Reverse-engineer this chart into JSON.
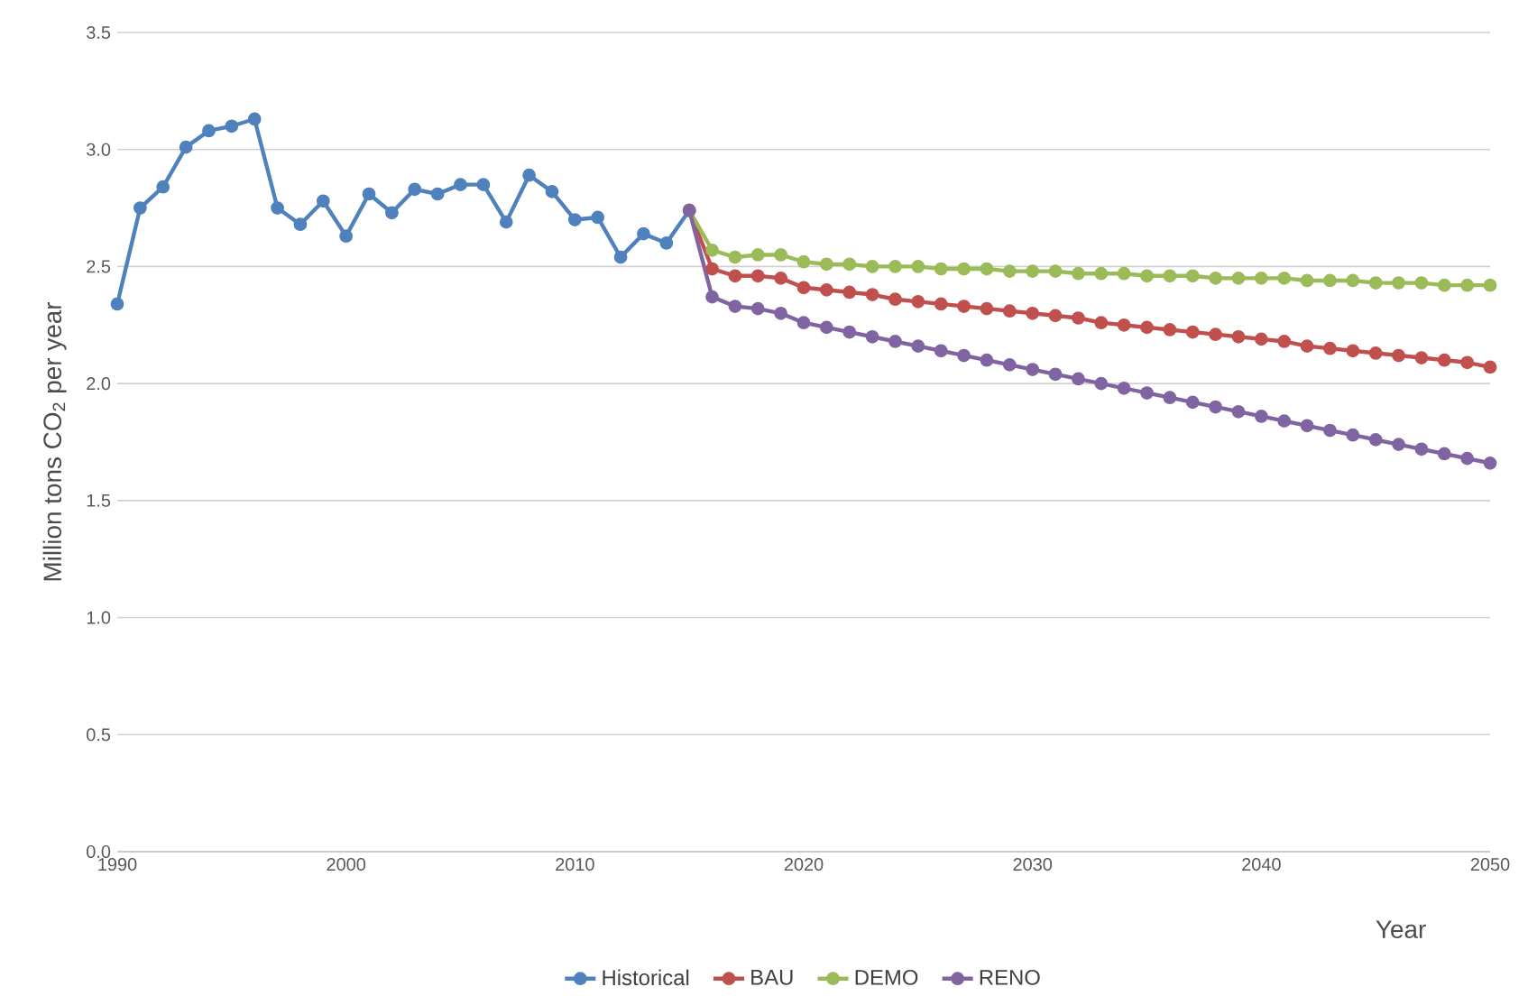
{
  "chart_data": {
    "type": "line",
    "xlabel": "Year",
    "ylabel": "Million tons CO$_{2}$ per year",
    "xlim": [
      1990,
      2050
    ],
    "xticks": [
      1990,
      2000,
      2010,
      2020,
      2030,
      2040,
      2050
    ],
    "ylim": [
      0,
      3.5
    ],
    "yticks": [
      {
        "value": 0,
        "label": "0.0"
      },
      {
        "value": 0.5,
        "label": "0.5"
      },
      {
        "value": 1,
        "label": "1.0"
      },
      {
        "value": 1.5,
        "label": "1.5"
      },
      {
        "value": 2,
        "label": "2.0"
      },
      {
        "value": 2.5,
        "label": "2.5"
      },
      {
        "value": 3,
        "label": "3.0"
      },
      {
        "value": 3.5,
        "label": "3.5"
      }
    ],
    "grid": "y",
    "legend": "bottom",
    "marker": "circle",
    "line_style": "solid",
    "series": [
      {
        "name": "Historical",
        "color": "#4f81bd",
        "x": [
          1990,
          1991,
          1992,
          1993,
          1994,
          1995,
          1996,
          1997,
          1998,
          1999,
          2000,
          2001,
          2002,
          2003,
          2004,
          2005,
          2006,
          2007,
          2008,
          2009,
          2010,
          2011,
          2012,
          2013,
          2014,
          2015
        ],
        "values": [
          2.34,
          2.75,
          2.84,
          3.01,
          3.08,
          3.1,
          3.13,
          2.75,
          2.68,
          2.78,
          2.63,
          2.81,
          2.73,
          2.83,
          2.81,
          2.85,
          2.85,
          2.69,
          2.89,
          2.82,
          2.7,
          2.71,
          2.54,
          2.64,
          2.6,
          2.74
        ]
      },
      {
        "name": "BAU",
        "color": "#c0504d",
        "x": [
          2015,
          2016,
          2017,
          2018,
          2019,
          2020,
          2021,
          2022,
          2023,
          2024,
          2025,
          2026,
          2027,
          2028,
          2029,
          2030,
          2031,
          2032,
          2033,
          2034,
          2035,
          2036,
          2037,
          2038,
          2039,
          2040,
          2041,
          2042,
          2043,
          2044,
          2045,
          2046,
          2047,
          2048,
          2049,
          2050
        ],
        "values": [
          2.74,
          2.49,
          2.46,
          2.46,
          2.45,
          2.41,
          2.4,
          2.39,
          2.38,
          2.36,
          2.35,
          2.34,
          2.33,
          2.32,
          2.31,
          2.3,
          2.29,
          2.28,
          2.26,
          2.25,
          2.24,
          2.23,
          2.22,
          2.21,
          2.2,
          2.19,
          2.18,
          2.16,
          2.15,
          2.14,
          2.13,
          2.12,
          2.11,
          2.1,
          2.09,
          2.07
        ]
      },
      {
        "name": "DEMO",
        "color": "#9bbb59",
        "x": [
          2015,
          2016,
          2017,
          2018,
          2019,
          2020,
          2021,
          2022,
          2023,
          2024,
          2025,
          2026,
          2027,
          2028,
          2029,
          2030,
          2031,
          2032,
          2033,
          2034,
          2035,
          2036,
          2037,
          2038,
          2039,
          2040,
          2041,
          2042,
          2043,
          2044,
          2045,
          2046,
          2047,
          2048,
          2049,
          2050
        ],
        "values": [
          2.74,
          2.57,
          2.54,
          2.55,
          2.55,
          2.52,
          2.51,
          2.51,
          2.5,
          2.5,
          2.5,
          2.49,
          2.49,
          2.49,
          2.48,
          2.48,
          2.48,
          2.47,
          2.47,
          2.47,
          2.46,
          2.46,
          2.46,
          2.45,
          2.45,
          2.45,
          2.45,
          2.44,
          2.44,
          2.44,
          2.43,
          2.43,
          2.43,
          2.42,
          2.42,
          2.42
        ]
      },
      {
        "name": "RENO",
        "color": "#8064a2",
        "x": [
          2015,
          2016,
          2017,
          2018,
          2019,
          2020,
          2021,
          2022,
          2023,
          2024,
          2025,
          2026,
          2027,
          2028,
          2029,
          2030,
          2031,
          2032,
          2033,
          2034,
          2035,
          2036,
          2037,
          2038,
          2039,
          2040,
          2041,
          2042,
          2043,
          2044,
          2045,
          2046,
          2047,
          2048,
          2049,
          2050
        ],
        "values": [
          2.74,
          2.37,
          2.33,
          2.32,
          2.3,
          2.26,
          2.24,
          2.22,
          2.2,
          2.18,
          2.16,
          2.14,
          2.12,
          2.1,
          2.08,
          2.06,
          2.04,
          2.02,
          2.0,
          1.98,
          1.96,
          1.94,
          1.92,
          1.9,
          1.88,
          1.86,
          1.84,
          1.82,
          1.8,
          1.78,
          1.76,
          1.74,
          1.72,
          1.7,
          1.68,
          1.66
        ]
      }
    ]
  }
}
